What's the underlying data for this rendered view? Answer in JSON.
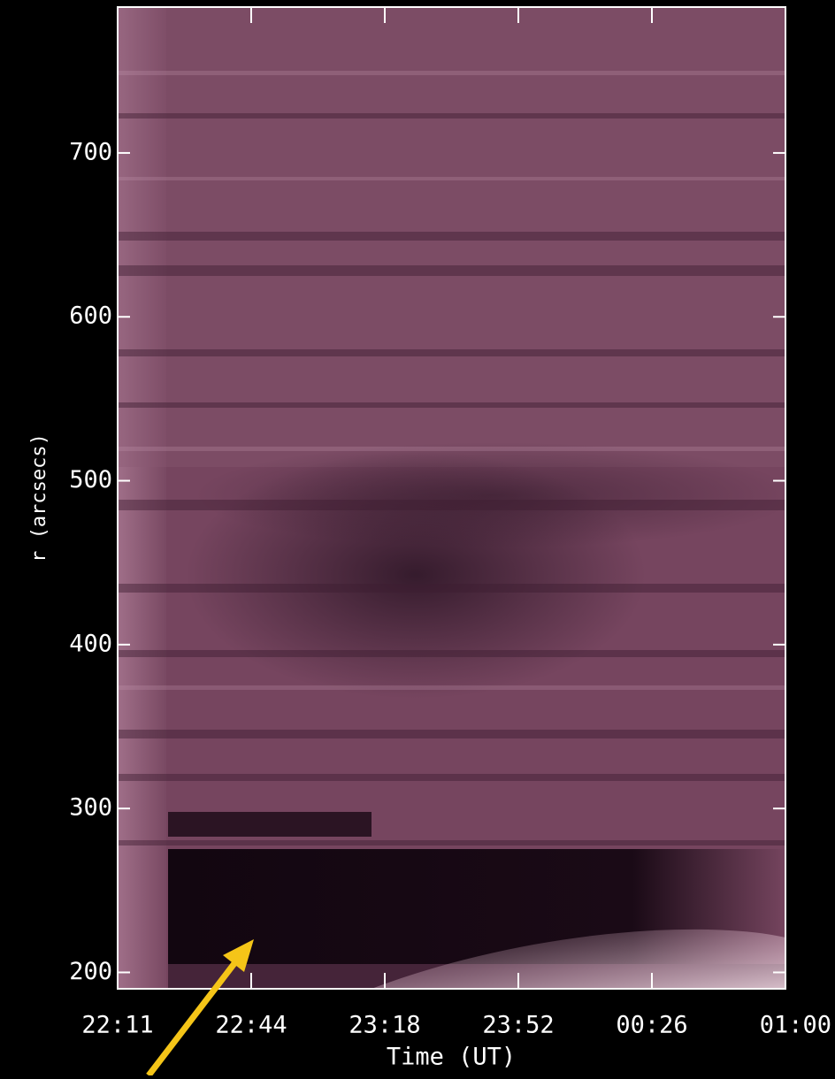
{
  "chart_data": {
    "type": "heatmap",
    "x_label": "Time (UT)",
    "y_label": "r (arcsecs)",
    "xticks": [
      "22:11",
      "22:44",
      "23:18",
      "23:52",
      "00:26",
      "01:00"
    ],
    "ylim": [
      190,
      789
    ],
    "yticks": [
      200,
      300,
      400,
      500,
      600,
      700
    ]
  }
}
